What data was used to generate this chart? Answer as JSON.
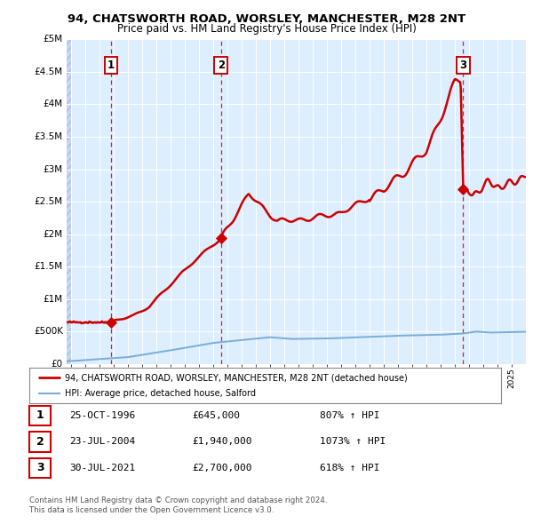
{
  "title": "94, CHATSWORTH ROAD, WORSLEY, MANCHESTER, M28 2NT",
  "subtitle": "Price paid vs. HM Land Registry's House Price Index (HPI)",
  "sales": [
    {
      "year": 1996.82,
      "price": 645000,
      "label": "1"
    },
    {
      "year": 2004.55,
      "price": 1940000,
      "label": "2"
    },
    {
      "year": 2021.58,
      "price": 2700000,
      "label": "3"
    }
  ],
  "sale_table": [
    {
      "num": "1",
      "date": "25-OCT-1996",
      "price": "£645,000",
      "hpi": "807% ↑ HPI"
    },
    {
      "num": "2",
      "date": "23-JUL-2004",
      "price": "£1,940,000",
      "hpi": "1073% ↑ HPI"
    },
    {
      "num": "3",
      "date": "30-JUL-2021",
      "price": "£2,700,000",
      "hpi": "618% ↑ HPI"
    }
  ],
  "legend_entries": [
    {
      "label": "94, CHATSWORTH ROAD, WORSLEY, MANCHESTER, M28 2NT (detached house)",
      "color": "#cc0000",
      "lw": 1.8
    },
    {
      "label": "HPI: Average price, detached house, Salford",
      "color": "#7aacda",
      "lw": 1.4
    }
  ],
  "footer": [
    "Contains HM Land Registry data © Crown copyright and database right 2024.",
    "This data is licensed under the Open Government Licence v3.0."
  ],
  "ylim": [
    0,
    5000000
  ],
  "yticks": [
    0,
    500000,
    1000000,
    1500000,
    2000000,
    2500000,
    3000000,
    3500000,
    4000000,
    4500000,
    5000000
  ],
  "ytick_labels": [
    "£0",
    "£500K",
    "£1M",
    "£1.5M",
    "£2M",
    "£2.5M",
    "£3M",
    "£3.5M",
    "£4M",
    "£4.5M",
    "£5M"
  ],
  "bg_color": "#ddeeff",
  "grid_color": "#ffffff",
  "sale_color": "#cc0000",
  "dashed_color": "#cc0000",
  "xstart": 1993.7,
  "xend": 2026.0
}
